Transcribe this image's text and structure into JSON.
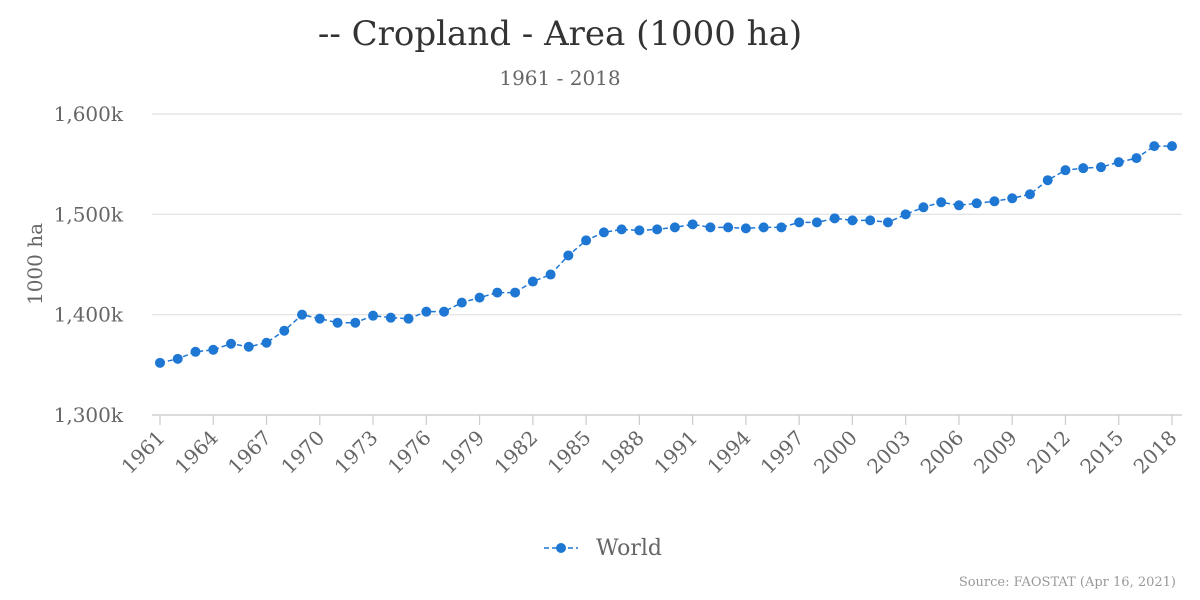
{
  "chart_data": {
    "type": "line",
    "title": "-- Cropland - Area (1000 ha)",
    "subtitle": "1961 - 2018",
    "xlabel": "",
    "ylabel": "1000 ha",
    "source": "Source: FAOSTAT (Apr 16, 2021)",
    "ylim": [
      1300000,
      1600000
    ],
    "yticks": [
      1300000,
      1400000,
      1500000,
      1600000
    ],
    "ytick_labels": [
      "1,300k",
      "1,400k",
      "1,500k",
      "1,600k"
    ],
    "xticks": [
      1961,
      1964,
      1967,
      1970,
      1973,
      1976,
      1979,
      1982,
      1985,
      1988,
      1991,
      1994,
      1997,
      2000,
      2003,
      2006,
      2009,
      2012,
      2015,
      2018
    ],
    "legend": "bottom-center",
    "series": [
      {
        "name": "World",
        "color": "#1f77d4",
        "x": [
          1961,
          1962,
          1963,
          1964,
          1965,
          1966,
          1967,
          1968,
          1969,
          1970,
          1971,
          1972,
          1973,
          1974,
          1975,
          1976,
          1977,
          1978,
          1979,
          1980,
          1981,
          1982,
          1983,
          1984,
          1985,
          1986,
          1987,
          1988,
          1989,
          1990,
          1991,
          1992,
          1993,
          1994,
          1995,
          1996,
          1997,
          1998,
          1999,
          2000,
          2001,
          2002,
          2003,
          2004,
          2005,
          2006,
          2007,
          2008,
          2009,
          2010,
          2011,
          2012,
          2013,
          2014,
          2015,
          2016,
          2017,
          2018
        ],
        "values": [
          1352000,
          1356000,
          1363000,
          1365000,
          1371000,
          1368000,
          1372000,
          1384000,
          1400000,
          1396000,
          1392000,
          1392000,
          1399000,
          1397000,
          1396000,
          1403000,
          1403000,
          1412000,
          1417000,
          1422000,
          1422000,
          1433000,
          1440000,
          1459000,
          1474000,
          1482000,
          1485000,
          1484000,
          1485000,
          1487000,
          1490000,
          1487000,
          1487000,
          1486000,
          1487000,
          1487000,
          1492000,
          1492000,
          1496000,
          1494000,
          1494000,
          1492000,
          1500000,
          1507000,
          1512000,
          1509000,
          1511000,
          1513000,
          1516000,
          1520000,
          1534000,
          1544000,
          1546000,
          1547000,
          1552000,
          1556000,
          1568000,
          1568000
        ]
      }
    ]
  }
}
